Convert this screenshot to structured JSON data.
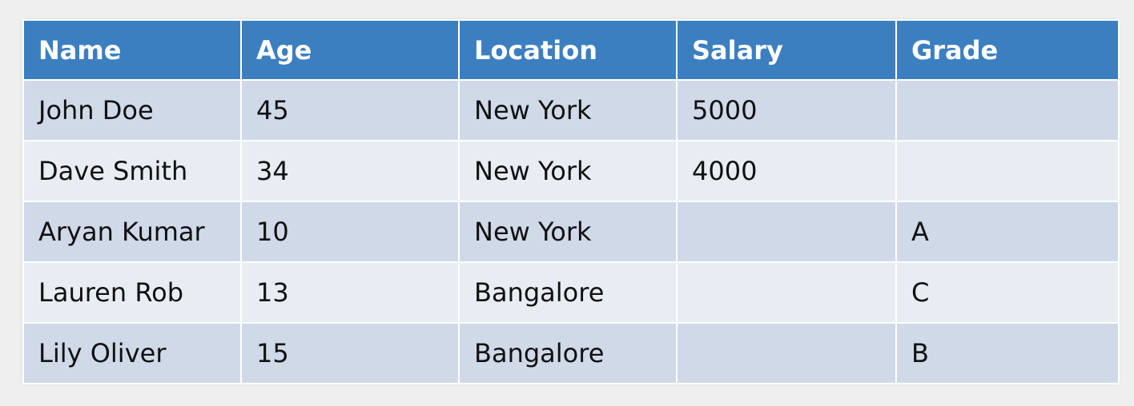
{
  "table": {
    "headers": [
      "Name",
      "Age",
      "Location",
      "Salary",
      "Grade"
    ],
    "rows": [
      [
        "John Doe",
        "45",
        "New York",
        "5000",
        ""
      ],
      [
        "Dave Smith",
        "34",
        "New York",
        "4000",
        ""
      ],
      [
        "Aryan Kumar",
        "10",
        "New York",
        "",
        "A"
      ],
      [
        "Lauren Rob",
        "13",
        "Bangalore",
        "",
        "C"
      ],
      [
        "Lily Oliver",
        "15",
        "Bangalore",
        "",
        "B"
      ]
    ]
  },
  "colors": {
    "header_bg": "#3c7fc0",
    "header_text": "#ffffff",
    "row_odd_bg": "#cfd9e8",
    "row_even_bg": "#e8edf4",
    "page_bg": "#efefef"
  }
}
